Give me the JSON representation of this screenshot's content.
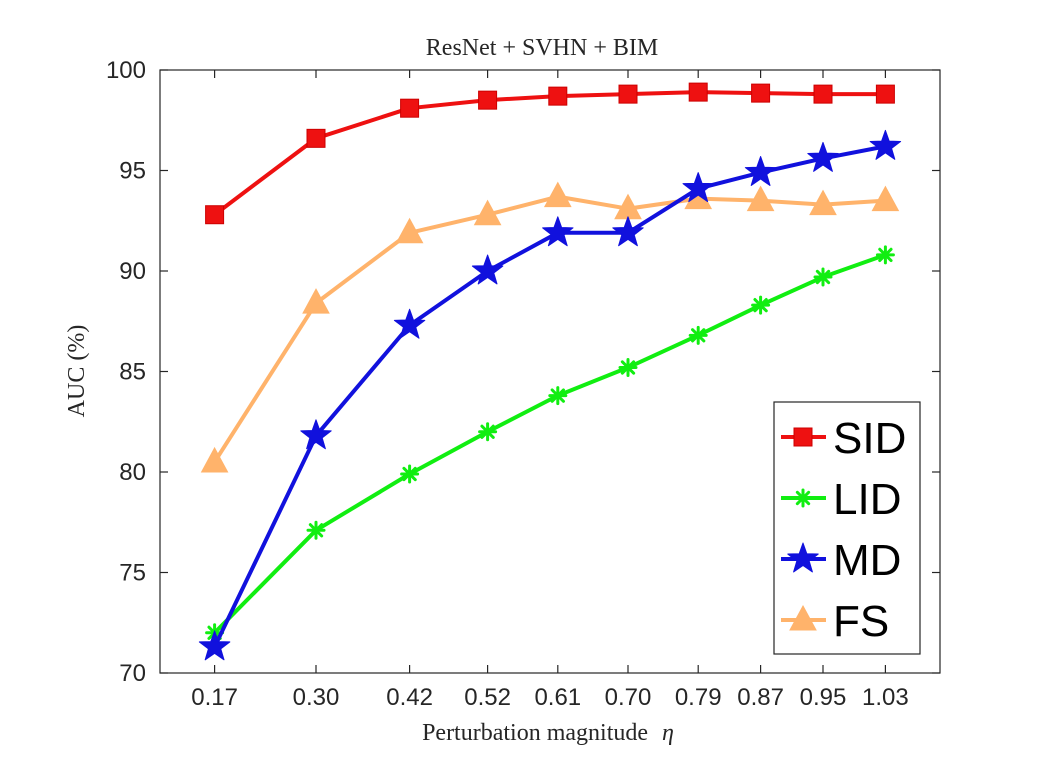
{
  "chart_data": {
    "type": "line",
    "title": "ResNet + SVHN + BIM",
    "xlabel": "Perturbation magnitude",
    "xlabel_symbol": "η",
    "ylabel": "AUC (%)",
    "categories": [
      "0.17",
      "0.30",
      "0.42",
      "0.52",
      "0.61",
      "0.70",
      "0.79",
      "0.87",
      "0.95",
      "1.03"
    ],
    "x": [
      0.17,
      0.3,
      0.42,
      0.52,
      0.61,
      0.7,
      0.79,
      0.87,
      0.95,
      1.03
    ],
    "xlim": [
      0.1,
      1.1
    ],
    "ylim": [
      70,
      100
    ],
    "yticks": [
      70,
      75,
      80,
      85,
      90,
      95,
      100
    ],
    "grid": false,
    "legend_position": "bottom-right",
    "series": [
      {
        "name": "SID",
        "color": "#ee1111",
        "marker": "square",
        "values": [
          92.8,
          96.6,
          98.1,
          98.5,
          98.7,
          98.8,
          98.9,
          98.85,
          98.8,
          98.8
        ]
      },
      {
        "name": "LID",
        "color": "#11ee11",
        "marker": "asterisk",
        "values": [
          72.0,
          77.1,
          79.9,
          82.0,
          83.8,
          85.2,
          86.8,
          88.3,
          89.7,
          90.8
        ]
      },
      {
        "name": "MD",
        "color": "#1111dd",
        "marker": "star",
        "values": [
          71.3,
          81.8,
          87.3,
          90.0,
          91.9,
          91.9,
          94.1,
          94.9,
          95.6,
          96.2
        ]
      },
      {
        "name": "FS",
        "color": "#ffb36b",
        "marker": "triangle",
        "values": [
          80.5,
          88.4,
          91.9,
          92.8,
          93.7,
          93.1,
          93.6,
          93.5,
          93.3,
          93.5
        ]
      }
    ]
  }
}
